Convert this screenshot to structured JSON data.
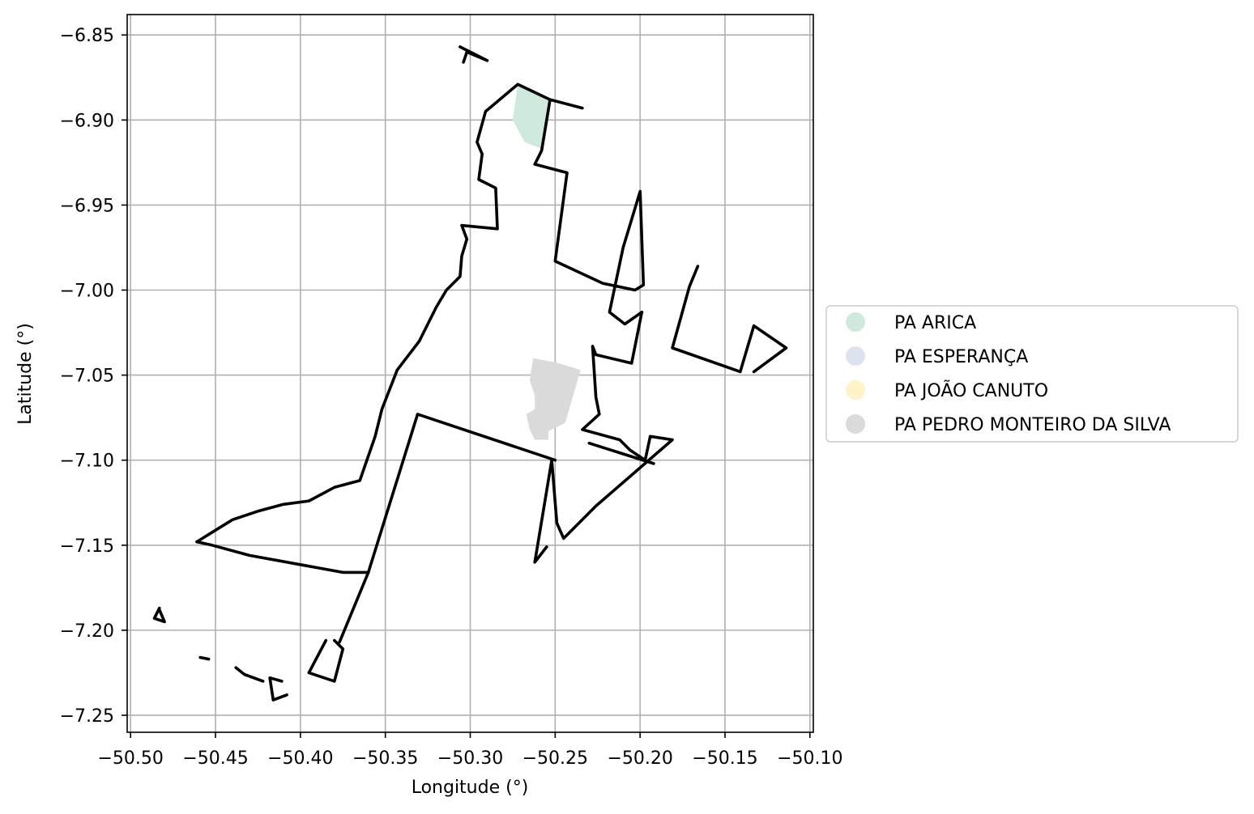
{
  "chart_data": {
    "type": "map",
    "xlabel": "Longitude (°)",
    "ylabel": "Latitude (°)",
    "xlim": [
      -50.502,
      -50.098
    ],
    "ylim": [
      -7.26,
      -6.838
    ],
    "grid": true,
    "x_ticks": [
      "−50.50",
      "−50.45",
      "−50.40",
      "−50.35",
      "−50.30",
      "−50.25",
      "−50.20",
      "−50.15",
      "−50.10"
    ],
    "x_tick_values": [
      -50.5,
      -50.45,
      -50.4,
      -50.35,
      -50.3,
      -50.25,
      -50.2,
      -50.15,
      -50.1
    ],
    "y_ticks": [
      "−6.85",
      "−6.90",
      "−6.95",
      "−7.00",
      "−7.05",
      "−7.10",
      "−7.15",
      "−7.20",
      "−7.25"
    ],
    "y_tick_values": [
      -6.85,
      -6.9,
      -6.95,
      -7.0,
      -7.05,
      -7.1,
      -7.15,
      -7.2,
      -7.25
    ],
    "legend": {
      "placement": "center-right",
      "entries": [
        {
          "label": "PA ARICA",
          "color": "#cfeadd"
        },
        {
          "label": "PA ESPERANÇA",
          "color": "#dce3ef"
        },
        {
          "label": "PA JOÃO CANUTO",
          "color": "#fdf3c6"
        },
        {
          "label": "PA PEDRO MONTEIRO DA SILVA",
          "color": "#dadada"
        }
      ]
    },
    "filled_areas": [
      {
        "name": "PA ARICA",
        "color": "#cfeadd",
        "points": [
          [
            -50.272,
            -6.879
          ],
          [
            -50.253,
            -6.888
          ],
          [
            -50.258,
            -6.917
          ],
          [
            -50.268,
            -6.913
          ],
          [
            -50.275,
            -6.9
          ]
        ]
      },
      {
        "name": "PA PEDRO MONTEIRO DA SILVA",
        "color": "#dadada",
        "points": [
          [
            -50.263,
            -7.04
          ],
          [
            -50.248,
            -7.043
          ],
          [
            -50.235,
            -7.047
          ],
          [
            -50.24,
            -7.064
          ],
          [
            -50.244,
            -7.078
          ],
          [
            -50.254,
            -7.083
          ],
          [
            -50.254,
            -7.088
          ],
          [
            -50.262,
            -7.088
          ],
          [
            -50.265,
            -7.082
          ],
          [
            -50.267,
            -7.073
          ],
          [
            -50.262,
            -7.07
          ],
          [
            -50.262,
            -7.062
          ],
          [
            -50.265,
            -7.053
          ]
        ]
      }
    ],
    "outlines": [
      [
        [
          -50.461,
          -7.148
        ],
        [
          -50.44,
          -7.135
        ],
        [
          -50.425,
          -7.13
        ],
        [
          -50.41,
          -7.126
        ],
        [
          -50.395,
          -7.124
        ],
        [
          -50.38,
          -7.116
        ],
        [
          -50.365,
          -7.112
        ],
        [
          -50.356,
          -7.086
        ],
        [
          -50.352,
          -7.07
        ],
        [
          -50.343,
          -7.047
        ],
        [
          -50.33,
          -7.03
        ],
        [
          -50.32,
          -7.01
        ],
        [
          -50.314,
          -7.0
        ],
        [
          -50.306,
          -6.992
        ],
        [
          -50.305,
          -6.98
        ],
        [
          -50.302,
          -6.97
        ],
        [
          -50.305,
          -6.962
        ],
        [
          -50.284,
          -6.964
        ],
        [
          -50.285,
          -6.94
        ],
        [
          -50.295,
          -6.935
        ],
        [
          -50.293,
          -6.92
        ],
        [
          -50.296,
          -6.913
        ],
        [
          -50.291,
          -6.895
        ],
        [
          -50.272,
          -6.879
        ],
        [
          -50.253,
          -6.888
        ],
        [
          -50.234,
          -6.893
        ]
      ],
      [
        [
          -50.253,
          -6.888
        ],
        [
          -50.258,
          -6.918
        ],
        [
          -50.262,
          -6.926
        ],
        [
          -50.243,
          -6.931
        ],
        [
          -50.25,
          -6.983
        ],
        [
          -50.222,
          -6.996
        ],
        [
          -50.203,
          -7.0
        ],
        [
          -50.198,
          -6.997
        ],
        [
          -50.2,
          -6.942
        ],
        [
          -50.21,
          -6.975
        ],
        [
          -50.218,
          -7.013
        ],
        [
          -50.209,
          -7.02
        ],
        [
          -50.199,
          -7.013
        ]
      ],
      [
        [
          -50.199,
          -7.013
        ],
        [
          -50.205,
          -7.043
        ],
        [
          -50.226,
          -7.038
        ],
        [
          -50.228,
          -7.033
        ],
        [
          -50.226,
          -7.063
        ],
        [
          -50.224,
          -7.073
        ],
        [
          -50.234,
          -7.082
        ],
        [
          -50.212,
          -7.088
        ],
        [
          -50.206,
          -7.094
        ],
        [
          -50.197,
          -7.1
        ],
        [
          -50.194,
          -7.086
        ],
        [
          -50.181,
          -7.088
        ],
        [
          -50.226,
          -7.127
        ],
        [
          -50.245,
          -7.146
        ],
        [
          -50.249,
          -7.137
        ],
        [
          -50.252,
          -7.1
        ],
        [
          -50.262,
          -7.16
        ],
        [
          -50.255,
          -7.151
        ]
      ],
      [
        [
          -50.25,
          -7.1
        ],
        [
          -50.331,
          -7.073
        ],
        [
          -50.36,
          -7.166
        ],
        [
          -50.377,
          -7.207
        ]
      ],
      [
        [
          -50.461,
          -7.148
        ],
        [
          -50.452,
          -7.15
        ],
        [
          -50.43,
          -7.156
        ],
        [
          -50.375,
          -7.166
        ],
        [
          -50.36,
          -7.166
        ]
      ],
      [
        [
          -50.166,
          -6.986
        ],
        [
          -50.171,
          -6.998
        ],
        [
          -50.181,
          -7.034
        ],
        [
          -50.141,
          -7.048
        ],
        [
          -50.133,
          -7.021
        ],
        [
          -50.114,
          -7.034
        ],
        [
          -50.133,
          -7.048
        ]
      ],
      [
        [
          -50.192,
          -7.102
        ],
        [
          -50.23,
          -7.09
        ]
      ],
      [
        [
          -50.306,
          -6.857
        ],
        [
          -50.29,
          -6.865
        ],
        [
          -50.302,
          -6.86
        ],
        [
          -50.304,
          -6.866
        ]
      ],
      [
        [
          -50.38,
          -7.206
        ],
        [
          -50.375,
          -7.211
        ],
        [
          -50.38,
          -7.23
        ],
        [
          -50.395,
          -7.225
        ],
        [
          -50.385,
          -7.206
        ]
      ],
      [
        [
          -50.483,
          -7.187
        ],
        [
          -50.486,
          -7.193
        ],
        [
          -50.48,
          -7.195
        ],
        [
          -50.483,
          -7.188
        ]
      ],
      [
        [
          -50.454,
          -7.217
        ],
        [
          -50.459,
          -7.216
        ]
      ],
      [
        [
          -50.438,
          -7.222
        ],
        [
          -50.433,
          -7.226
        ],
        [
          -50.422,
          -7.23
        ]
      ],
      [
        [
          -50.411,
          -7.23
        ],
        [
          -50.418,
          -7.228
        ],
        [
          -50.416,
          -7.241
        ],
        [
          -50.408,
          -7.238
        ]
      ]
    ]
  }
}
